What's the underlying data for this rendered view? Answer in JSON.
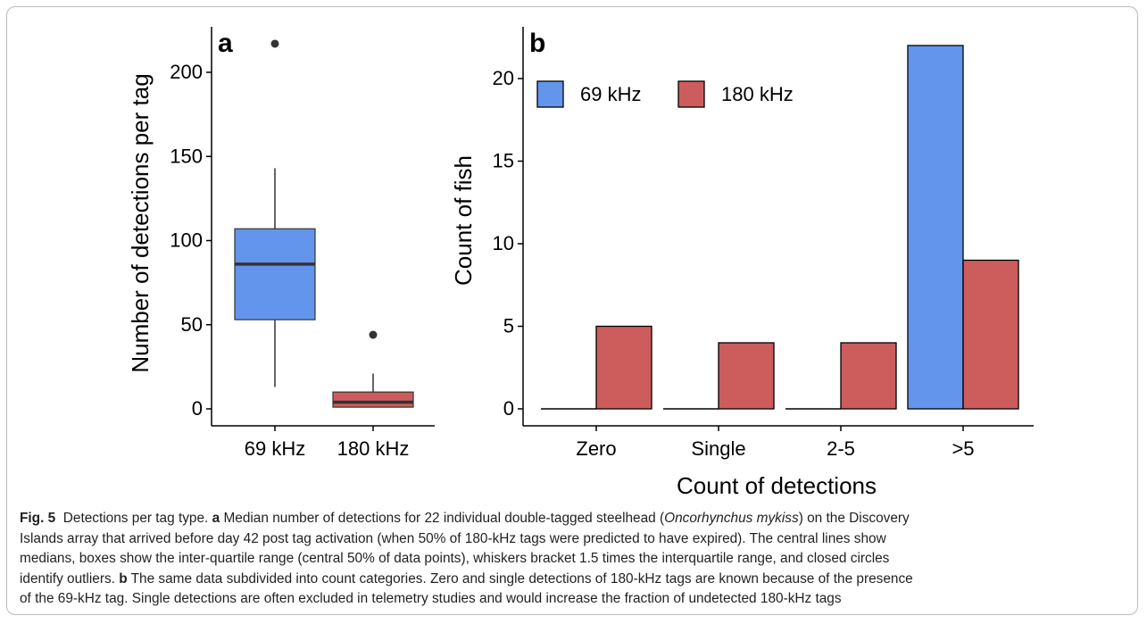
{
  "chart_data": [
    {
      "type": "boxplot",
      "panel_label": "a",
      "ylabel": "Number of detections per tag",
      "ylim": [
        0,
        225
      ],
      "yticks": [
        0,
        50,
        100,
        150,
        200
      ],
      "categories": [
        "69 kHz",
        "180 kHz"
      ],
      "boxes": [
        {
          "category": "69 kHz",
          "color": "#6495ed",
          "whisker_low": 13,
          "q1": 53,
          "median": 86,
          "q3": 107,
          "whisker_high": 143,
          "outliers": [
            217
          ]
        },
        {
          "category": "180 kHz",
          "color": "#cd5c5c",
          "whisker_low": 1,
          "q1": 1,
          "median": 4,
          "q3": 10,
          "whisker_high": 21,
          "outliers": [
            44
          ]
        }
      ],
      "grid": false
    },
    {
      "type": "bar",
      "panel_label": "b",
      "xlabel": "Count of detections",
      "ylabel": "Count of fish",
      "ylim": [
        0,
        23.5
      ],
      "yticks": [
        0,
        5,
        10,
        15,
        20
      ],
      "categories": [
        "Zero",
        "Single",
        "2-5",
        ">5"
      ],
      "series": [
        {
          "name": "69 kHz",
          "color": "#6495ed",
          "values": [
            0,
            0,
            0,
            22
          ]
        },
        {
          "name": "180 kHz",
          "color": "#cd5c5c",
          "values": [
            5,
            4,
            4,
            9
          ]
        }
      ],
      "legend_position": "top-left",
      "grid": false
    }
  ],
  "caption": {
    "fig_label": "Fig. 5",
    "title": "Detections per tag type.",
    "a_label": "a",
    "a_text_1": "Median number of detections for 22 individual double-tagged steelhead (",
    "species": "Oncorhynchus mykiss",
    "a_text_2": ") on the Discovery",
    "line_2": "Islands array that arrived before day 42 post tag activation (when 50% of 180-kHz tags were predicted to have expired). The central lines show",
    "line_3": "medians, boxes show the inter-quartile range (central 50% of data points), whiskers bracket 1.5 times the interquartile range, and closed circles",
    "line_4_pre": "identify outliers.",
    "b_label": "b",
    "line_4_post": "The same data subdivided into count categories. Zero and single detections of 180-kHz tags are known because of the presence",
    "line_5": "of the 69-kHz tag. Single detections are often excluded in telemetry studies and would increase the fraction of undetected 180-kHz tags"
  }
}
